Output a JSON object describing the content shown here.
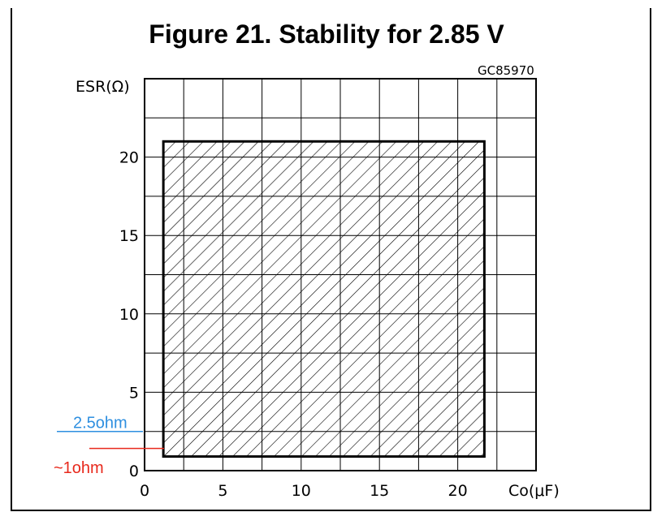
{
  "title": "Figure 21. Stability for 2.85 V",
  "figure_code": "GC85970",
  "colors": {
    "annotation_red": "#e8291c",
    "annotation_blue": "#2e8fe0"
  },
  "annotations": {
    "blue_label": "2.5ohm",
    "red_label": "~1ohm"
  },
  "chart_data": {
    "type": "area",
    "title": "Figure 21. Stability for 2.85 V",
    "xlabel": "Co(μF)",
    "ylabel": "ESR(Ω)",
    "xlim": [
      0,
      25
    ],
    "ylim": [
      0,
      25
    ],
    "x_ticks": [
      0,
      5,
      10,
      15,
      20
    ],
    "y_ticks": [
      0,
      5,
      10,
      15,
      20
    ],
    "grid": true,
    "stable_region": {
      "x": [
        1.2,
        21.7
      ],
      "y": [
        0.9,
        21
      ]
    },
    "annotation_lines": [
      {
        "label": "2.5ohm",
        "y": 2.5,
        "color": "#2e8fe0"
      },
      {
        "label": "~1ohm",
        "y": 1,
        "color": "#e8291c"
      }
    ]
  }
}
